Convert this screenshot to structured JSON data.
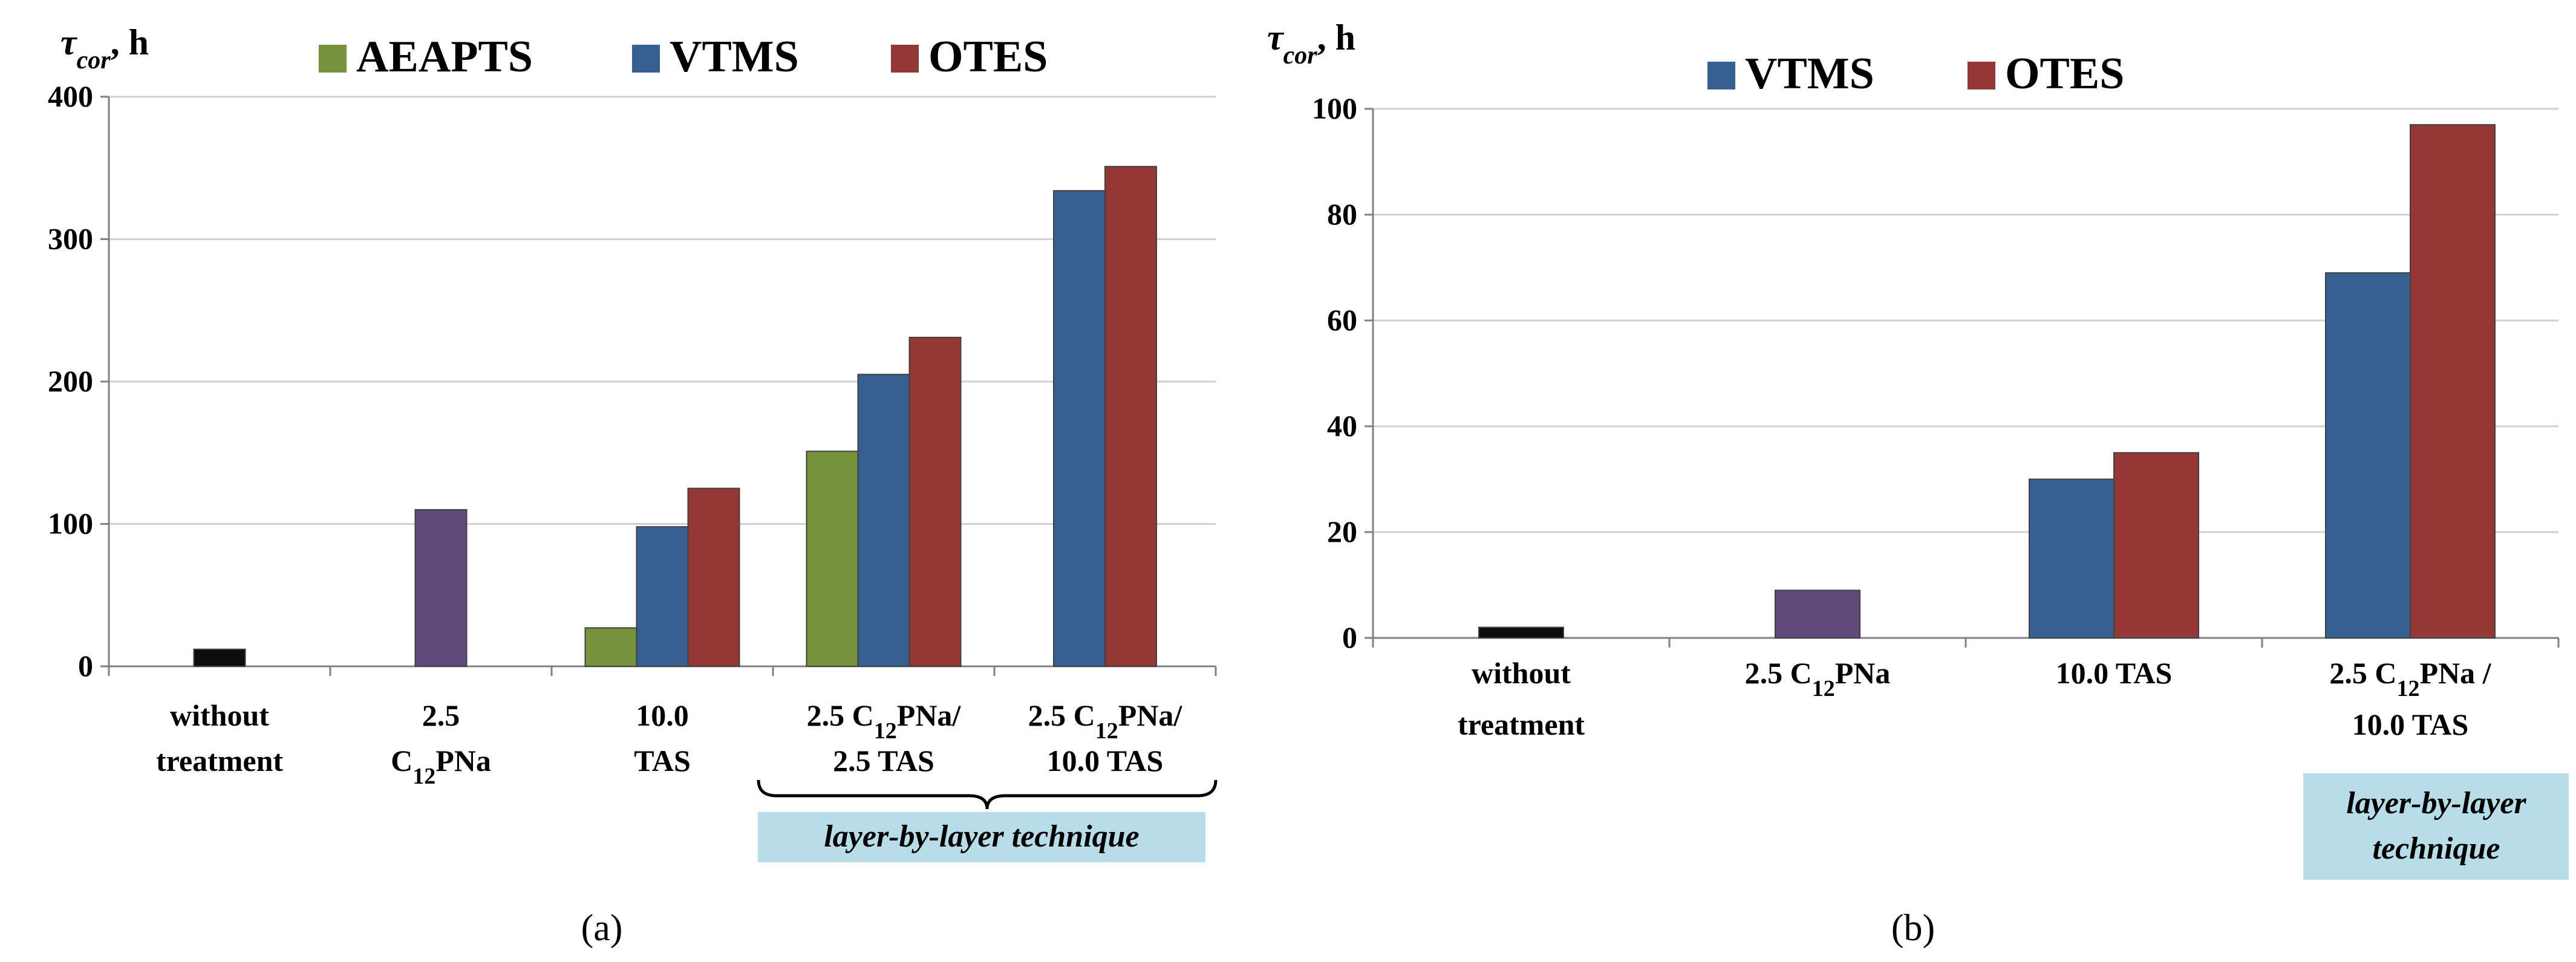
{
  "chart_data": [
    {
      "type": "bar",
      "ylabel_symbol": "τ",
      "ylabel_sub": "cor",
      "ylabel_unit": ", h",
      "ylim": [
        0,
        400
      ],
      "yticks": [
        "0",
        "100",
        "200",
        "300",
        "400"
      ],
      "legend": [
        {
          "name": "AEAPTS",
          "color": "#76933c"
        },
        {
          "name": "VTMS",
          "color": "#376092"
        },
        {
          "name": "OTES",
          "color": "#953735"
        }
      ],
      "categories": [
        {
          "lines": [
            [
              "without",
              ""
            ]
          ],
          "lines2": [
            [
              "treatment",
              ""
            ]
          ]
        },
        {
          "lines": [
            [
              "2.5",
              ""
            ]
          ],
          "lines2": [
            [
              "C",
              ""
            ],
            [
              "12",
              "sub"
            ],
            [
              "PNa",
              ""
            ]
          ]
        },
        {
          "lines": [
            [
              "10.0",
              ""
            ]
          ],
          "lines2": [
            [
              "TAS",
              ""
            ]
          ]
        },
        {
          "lines": [
            [
              "2.5 C",
              ""
            ],
            [
              "12",
              "sub"
            ],
            [
              "PNa/",
              ""
            ]
          ],
          "lines2": [
            [
              "2.5 TAS",
              ""
            ]
          ]
        },
        {
          "lines": [
            [
              "2.5 C",
              ""
            ],
            [
              "12",
              "sub"
            ],
            [
              "PNa/",
              ""
            ]
          ],
          "lines2": [
            [
              "10.0 TAS",
              ""
            ]
          ]
        }
      ],
      "bars": [
        [
          {
            "series": "none",
            "value": 12,
            "color": "#0d0d0d"
          }
        ],
        [
          {
            "series": "none",
            "value": 110,
            "color": "#604a7b"
          }
        ],
        [
          {
            "series": "AEAPTS",
            "value": 27
          },
          {
            "series": "VTMS",
            "value": 98
          },
          {
            "series": "OTES",
            "value": 125
          }
        ],
        [
          {
            "series": "AEAPTS",
            "value": 151
          },
          {
            "series": "VTMS",
            "value": 205
          },
          {
            "series": "OTES",
            "value": 231
          }
        ],
        [
          {
            "series": "VTMS",
            "value": 334
          },
          {
            "series": "OTES",
            "value": 351
          }
        ]
      ],
      "annotation": "layer-by-layer technique",
      "caption": "(a)"
    },
    {
      "type": "bar",
      "ylabel_symbol": "τ",
      "ylabel_sub": "cor",
      "ylabel_unit": ", h",
      "ylim": [
        0,
        100
      ],
      "yticks": [
        "0",
        "20",
        "40",
        "60",
        "80",
        "100"
      ],
      "legend": [
        {
          "name": "VTMS",
          "color": "#376092"
        },
        {
          "name": "OTES",
          "color": "#953735"
        }
      ],
      "categories": [
        {
          "lines": [
            [
              "without",
              ""
            ]
          ],
          "lines2": [
            [
              "treatment",
              ""
            ]
          ]
        },
        {
          "lines": [
            [
              "2.5 C",
              ""
            ],
            [
              "12",
              "sub"
            ],
            [
              "PNa",
              ""
            ]
          ],
          "lines2": []
        },
        {
          "lines": [
            [
              "10.0 TAS",
              ""
            ]
          ],
          "lines2": []
        },
        {
          "lines": [
            [
              "2.5 C",
              ""
            ],
            [
              "12",
              "sub"
            ],
            [
              "PNa /",
              ""
            ]
          ],
          "lines2": [
            [
              "10.0 TAS",
              ""
            ]
          ]
        }
      ],
      "bars": [
        [
          {
            "series": "none",
            "value": 2,
            "color": "#0d0d0d"
          }
        ],
        [
          {
            "series": "none",
            "value": 9,
            "color": "#604a7b"
          }
        ],
        [
          {
            "series": "VTMS",
            "value": 30
          },
          {
            "series": "OTES",
            "value": 35
          }
        ],
        [
          {
            "series": "VTMS",
            "value": 69
          },
          {
            "series": "OTES",
            "value": 97
          }
        ]
      ],
      "annotation_line1": "layer-by-layer",
      "annotation_line2": "technique",
      "caption": "(b)"
    }
  ]
}
